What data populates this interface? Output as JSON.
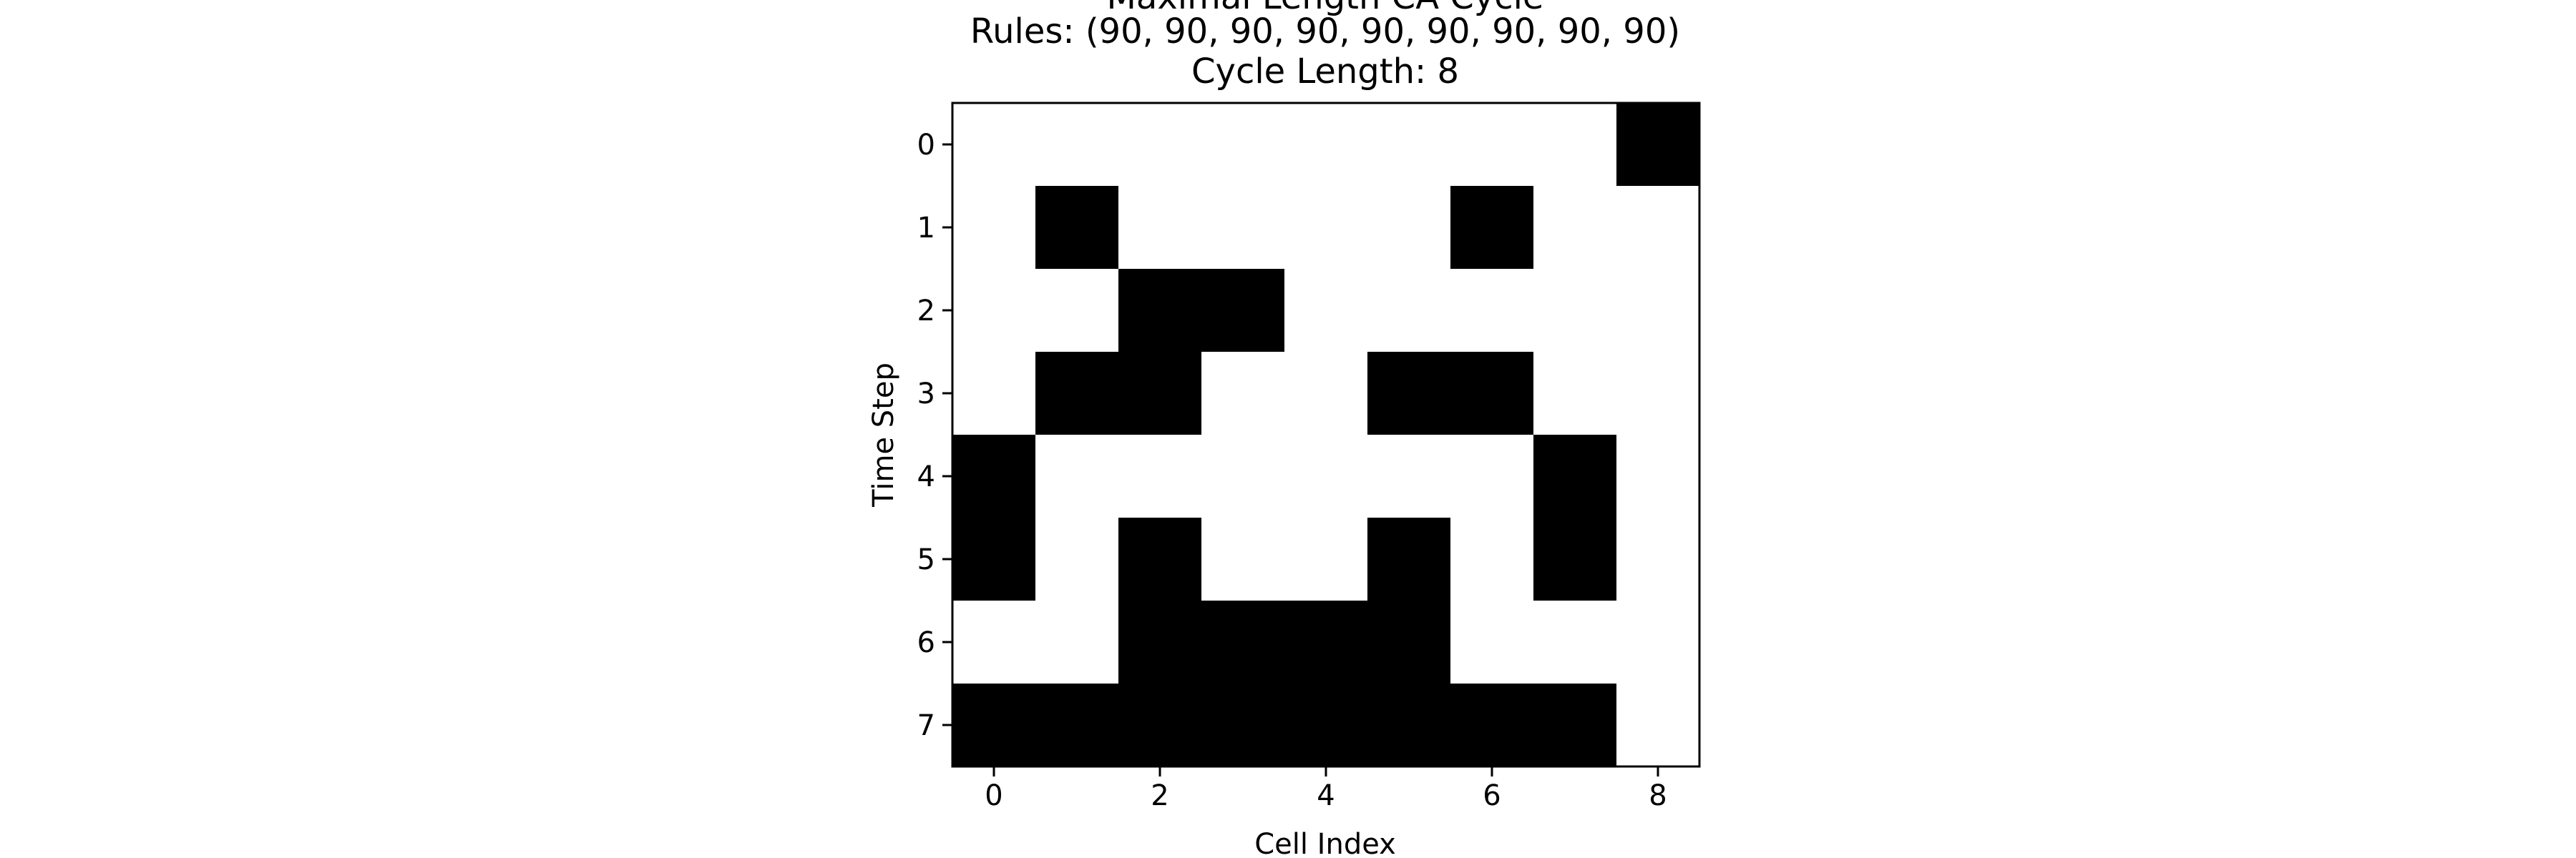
{
  "chart_data": {
    "type": "heatmap",
    "title_lines": [
      "Maximal Length CA Cycle",
      "Rules: (90, 90, 90, 90, 90, 90, 90, 90, 90)",
      "Cycle Length: 8"
    ],
    "xlabel": "Cell Index",
    "ylabel": "Time Step",
    "x_ticks": [
      0,
      2,
      4,
      6,
      8
    ],
    "y_ticks": [
      0,
      1,
      2,
      3,
      4,
      5,
      6,
      7
    ],
    "colormap": {
      "0": "#ffffff",
      "1": "#000000"
    },
    "grid": false,
    "rows": [
      [
        0,
        0,
        0,
        0,
        0,
        0,
        0,
        0,
        1
      ],
      [
        0,
        1,
        0,
        0,
        0,
        0,
        1,
        0,
        0
      ],
      [
        0,
        0,
        1,
        1,
        0,
        0,
        0,
        0,
        0
      ],
      [
        0,
        1,
        1,
        0,
        0,
        1,
        1,
        0,
        0
      ],
      [
        1,
        0,
        0,
        0,
        0,
        0,
        0,
        1,
        0
      ],
      [
        1,
        0,
        1,
        0,
        0,
        1,
        0,
        1,
        0
      ],
      [
        0,
        0,
        1,
        1,
        1,
        1,
        0,
        0,
        0
      ],
      [
        1,
        1,
        1,
        1,
        1,
        1,
        1,
        1,
        0
      ]
    ]
  }
}
